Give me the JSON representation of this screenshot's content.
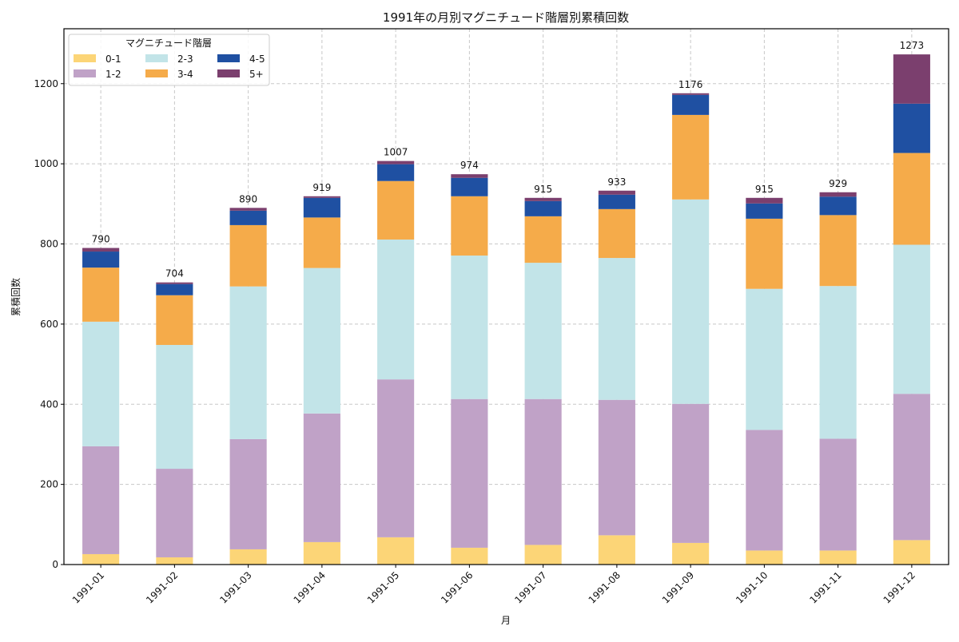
{
  "chart_data": {
    "type": "bar",
    "stacked": true,
    "title": "1991年の月別マグニチュード階層別累積回数",
    "xlabel": "月",
    "ylabel": "累積回数",
    "ylim": [
      0,
      1337
    ],
    "yticks": [
      0,
      200,
      400,
      600,
      800,
      1000,
      1200
    ],
    "grid": true,
    "legend": {
      "title": "マグニチュード階層",
      "placement": "top-left",
      "columns": 3
    },
    "categories": [
      "1991-01",
      "1991-02",
      "1991-03",
      "1991-04",
      "1991-05",
      "1991-06",
      "1991-07",
      "1991-08",
      "1991-09",
      "1991-10",
      "1991-11",
      "1991-12"
    ],
    "series": [
      {
        "name": "0-1",
        "color": "#fcd577",
        "values": [
          26,
          18,
          38,
          56,
          68,
          42,
          49,
          73,
          54,
          35,
          35,
          61
        ]
      },
      {
        "name": "1-2",
        "color": "#c0a2c7",
        "values": [
          269,
          221,
          275,
          321,
          394,
          371,
          364,
          338,
          347,
          301,
          279,
          365
        ]
      },
      {
        "name": "2-3",
        "color": "#c2e4e8",
        "values": [
          311,
          309,
          381,
          363,
          349,
          358,
          340,
          354,
          510,
          352,
          381,
          372
        ]
      },
      {
        "name": "3-4",
        "color": "#f5ab4a",
        "values": [
          135,
          124,
          153,
          126,
          146,
          148,
          116,
          122,
          211,
          175,
          177,
          229
        ]
      },
      {
        "name": "4-5",
        "color": "#1f50a2",
        "values": [
          40,
          28,
          36,
          49,
          42,
          46,
          38,
          36,
          50,
          38,
          46,
          123
        ]
      },
      {
        "name": "5+",
        "color": "#7b3f6e",
        "values": [
          9,
          4,
          7,
          4,
          8,
          9,
          8,
          10,
          4,
          14,
          11,
          123
        ]
      }
    ],
    "totals": [
      "790",
      "704",
      "890",
      "919",
      "1007",
      "974",
      "915",
      "933",
      "1176",
      "915",
      "929",
      "1273"
    ]
  }
}
